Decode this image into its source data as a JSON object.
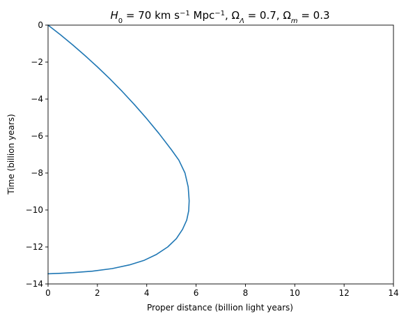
{
  "chart_data": {
    "type": "line",
    "title_parts": {
      "h0_sym": "H",
      "h0_sub": "0",
      "h0_value": " = 70 km s",
      "h0_sup": "−1",
      "h0_unit": " Mpc",
      "h0_unit_sup": "−1",
      "sep1": ", ",
      "omega_l_sym": "Ω",
      "omega_l_sub": "Λ",
      "omega_l_value": " = 0.7, ",
      "omega_m_sym": "Ω",
      "omega_m_sub": "m",
      "omega_m_value": " = 0.3"
    },
    "xlabel": "Proper distance (billion light years)",
    "ylabel": "Time (billion years)",
    "xlim": [
      0,
      14
    ],
    "ylim": [
      -14,
      0
    ],
    "xticks": [
      0,
      2,
      4,
      6,
      8,
      10,
      12,
      14
    ],
    "yticks": [
      0,
      -2,
      -4,
      -6,
      -8,
      -10,
      -12,
      -14
    ],
    "xtick_labels": [
      "0",
      "2",
      "4",
      "6",
      "8",
      "10",
      "12",
      "14"
    ],
    "ytick_labels": [
      "0",
      "−2",
      "−4",
      "−6",
      "−8",
      "−10",
      "−12",
      "−14"
    ],
    "grid": false,
    "series": [
      {
        "color": "#1f77b4",
        "x": [
          0.0,
          0.5,
          1.0,
          1.5,
          2.0,
          2.5,
          3.0,
          3.5,
          4.0,
          4.5,
          5.0,
          5.3,
          5.55,
          5.68,
          5.72,
          5.7,
          5.62,
          5.45,
          5.2,
          4.85,
          4.4,
          3.9,
          3.3,
          2.6,
          1.8,
          1.0,
          0.4,
          0.0
        ],
        "y": [
          0.0,
          -0.52,
          -1.07,
          -1.65,
          -2.26,
          -2.9,
          -3.58,
          -4.3,
          -5.06,
          -5.87,
          -6.74,
          -7.3,
          -8.0,
          -8.75,
          -9.5,
          -10.05,
          -10.55,
          -11.05,
          -11.55,
          -12.0,
          -12.4,
          -12.72,
          -12.97,
          -13.17,
          -13.31,
          -13.39,
          -13.43,
          -13.45
        ]
      }
    ]
  }
}
